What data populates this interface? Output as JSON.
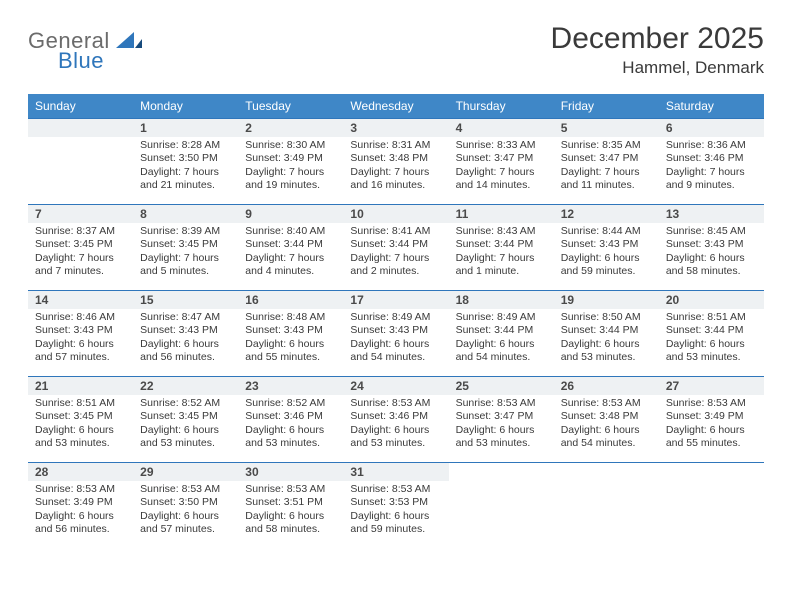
{
  "brand": {
    "part1": "General",
    "part2": "Blue"
  },
  "title": "December 2025",
  "location": "Hammel, Denmark",
  "colors": {
    "headerBg": "#3f87c7",
    "headerText": "#ffffff",
    "dayNumBg": "#eef1f3",
    "rowBorder": "#2f76bb",
    "brandBlue": "#2f76bb",
    "brandGray": "#6b6b6b",
    "bodyText": "#3a3a3a"
  },
  "weekdays": [
    "Sunday",
    "Monday",
    "Tuesday",
    "Wednesday",
    "Thursday",
    "Friday",
    "Saturday"
  ],
  "weeks": [
    [
      {
        "num": "",
        "lines": []
      },
      {
        "num": "1",
        "lines": [
          "Sunrise: 8:28 AM",
          "Sunset: 3:50 PM",
          "Daylight: 7 hours",
          "and 21 minutes."
        ]
      },
      {
        "num": "2",
        "lines": [
          "Sunrise: 8:30 AM",
          "Sunset: 3:49 PM",
          "Daylight: 7 hours",
          "and 19 minutes."
        ]
      },
      {
        "num": "3",
        "lines": [
          "Sunrise: 8:31 AM",
          "Sunset: 3:48 PM",
          "Daylight: 7 hours",
          "and 16 minutes."
        ]
      },
      {
        "num": "4",
        "lines": [
          "Sunrise: 8:33 AM",
          "Sunset: 3:47 PM",
          "Daylight: 7 hours",
          "and 14 minutes."
        ]
      },
      {
        "num": "5",
        "lines": [
          "Sunrise: 8:35 AM",
          "Sunset: 3:47 PM",
          "Daylight: 7 hours",
          "and 11 minutes."
        ]
      },
      {
        "num": "6",
        "lines": [
          "Sunrise: 8:36 AM",
          "Sunset: 3:46 PM",
          "Daylight: 7 hours",
          "and 9 minutes."
        ]
      }
    ],
    [
      {
        "num": "7",
        "lines": [
          "Sunrise: 8:37 AM",
          "Sunset: 3:45 PM",
          "Daylight: 7 hours",
          "and 7 minutes."
        ]
      },
      {
        "num": "8",
        "lines": [
          "Sunrise: 8:39 AM",
          "Sunset: 3:45 PM",
          "Daylight: 7 hours",
          "and 5 minutes."
        ]
      },
      {
        "num": "9",
        "lines": [
          "Sunrise: 8:40 AM",
          "Sunset: 3:44 PM",
          "Daylight: 7 hours",
          "and 4 minutes."
        ]
      },
      {
        "num": "10",
        "lines": [
          "Sunrise: 8:41 AM",
          "Sunset: 3:44 PM",
          "Daylight: 7 hours",
          "and 2 minutes."
        ]
      },
      {
        "num": "11",
        "lines": [
          "Sunrise: 8:43 AM",
          "Sunset: 3:44 PM",
          "Daylight: 7 hours",
          "and 1 minute."
        ]
      },
      {
        "num": "12",
        "lines": [
          "Sunrise: 8:44 AM",
          "Sunset: 3:43 PM",
          "Daylight: 6 hours",
          "and 59 minutes."
        ]
      },
      {
        "num": "13",
        "lines": [
          "Sunrise: 8:45 AM",
          "Sunset: 3:43 PM",
          "Daylight: 6 hours",
          "and 58 minutes."
        ]
      }
    ],
    [
      {
        "num": "14",
        "lines": [
          "Sunrise: 8:46 AM",
          "Sunset: 3:43 PM",
          "Daylight: 6 hours",
          "and 57 minutes."
        ]
      },
      {
        "num": "15",
        "lines": [
          "Sunrise: 8:47 AM",
          "Sunset: 3:43 PM",
          "Daylight: 6 hours",
          "and 56 minutes."
        ]
      },
      {
        "num": "16",
        "lines": [
          "Sunrise: 8:48 AM",
          "Sunset: 3:43 PM",
          "Daylight: 6 hours",
          "and 55 minutes."
        ]
      },
      {
        "num": "17",
        "lines": [
          "Sunrise: 8:49 AM",
          "Sunset: 3:43 PM",
          "Daylight: 6 hours",
          "and 54 minutes."
        ]
      },
      {
        "num": "18",
        "lines": [
          "Sunrise: 8:49 AM",
          "Sunset: 3:44 PM",
          "Daylight: 6 hours",
          "and 54 minutes."
        ]
      },
      {
        "num": "19",
        "lines": [
          "Sunrise: 8:50 AM",
          "Sunset: 3:44 PM",
          "Daylight: 6 hours",
          "and 53 minutes."
        ]
      },
      {
        "num": "20",
        "lines": [
          "Sunrise: 8:51 AM",
          "Sunset: 3:44 PM",
          "Daylight: 6 hours",
          "and 53 minutes."
        ]
      }
    ],
    [
      {
        "num": "21",
        "lines": [
          "Sunrise: 8:51 AM",
          "Sunset: 3:45 PM",
          "Daylight: 6 hours",
          "and 53 minutes."
        ]
      },
      {
        "num": "22",
        "lines": [
          "Sunrise: 8:52 AM",
          "Sunset: 3:45 PM",
          "Daylight: 6 hours",
          "and 53 minutes."
        ]
      },
      {
        "num": "23",
        "lines": [
          "Sunrise: 8:52 AM",
          "Sunset: 3:46 PM",
          "Daylight: 6 hours",
          "and 53 minutes."
        ]
      },
      {
        "num": "24",
        "lines": [
          "Sunrise: 8:53 AM",
          "Sunset: 3:46 PM",
          "Daylight: 6 hours",
          "and 53 minutes."
        ]
      },
      {
        "num": "25",
        "lines": [
          "Sunrise: 8:53 AM",
          "Sunset: 3:47 PM",
          "Daylight: 6 hours",
          "and 53 minutes."
        ]
      },
      {
        "num": "26",
        "lines": [
          "Sunrise: 8:53 AM",
          "Sunset: 3:48 PM",
          "Daylight: 6 hours",
          "and 54 minutes."
        ]
      },
      {
        "num": "27",
        "lines": [
          "Sunrise: 8:53 AM",
          "Sunset: 3:49 PM",
          "Daylight: 6 hours",
          "and 55 minutes."
        ]
      }
    ],
    [
      {
        "num": "28",
        "lines": [
          "Sunrise: 8:53 AM",
          "Sunset: 3:49 PM",
          "Daylight: 6 hours",
          "and 56 minutes."
        ]
      },
      {
        "num": "29",
        "lines": [
          "Sunrise: 8:53 AM",
          "Sunset: 3:50 PM",
          "Daylight: 6 hours",
          "and 57 minutes."
        ]
      },
      {
        "num": "30",
        "lines": [
          "Sunrise: 8:53 AM",
          "Sunset: 3:51 PM",
          "Daylight: 6 hours",
          "and 58 minutes."
        ]
      },
      {
        "num": "31",
        "lines": [
          "Sunrise: 8:53 AM",
          "Sunset: 3:53 PM",
          "Daylight: 6 hours",
          "and 59 minutes."
        ]
      },
      {
        "num": "",
        "lines": [],
        "trail": true
      },
      {
        "num": "",
        "lines": [],
        "trail": true
      },
      {
        "num": "",
        "lines": [],
        "trail": true
      }
    ]
  ]
}
